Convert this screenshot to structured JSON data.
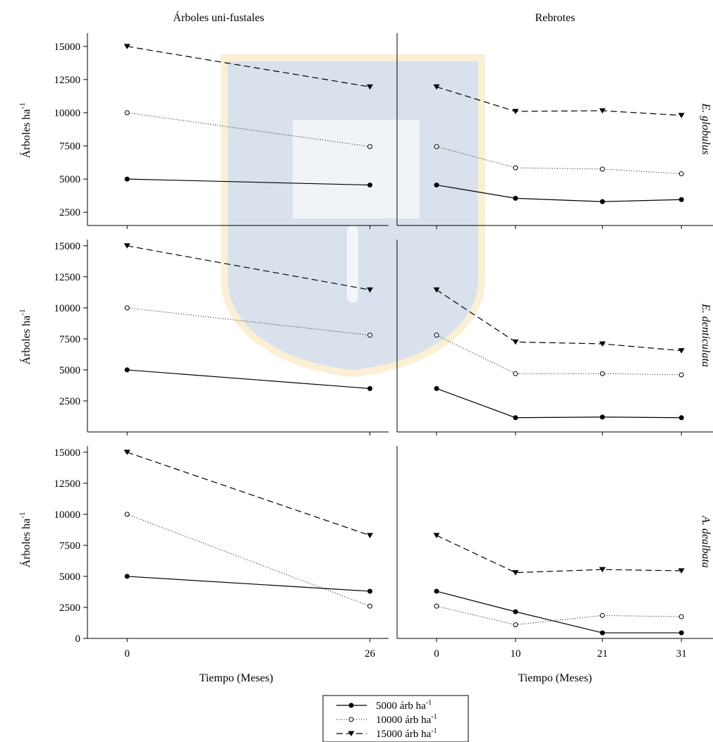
{
  "figure": {
    "col_titles": [
      "Árboles uni-fustales",
      "Rebrotes"
    ],
    "row_labels": [
      "E. globulus",
      "E. denticulata",
      "A. dealbata"
    ],
    "ylabel": {
      "main": "Árboles ha",
      "sup": "-1"
    },
    "xlabel": "Tiempo (Meses)"
  },
  "legend": {
    "entries": [
      {
        "series": 0,
        "main": "5000 árb ha",
        "sup": "-1"
      },
      {
        "series": 1,
        "main": "10000 árb ha",
        "sup": "-1"
      },
      {
        "series": 2,
        "main": "15000 árb ha",
        "sup": "-1"
      }
    ]
  },
  "chart_data": [
    {
      "type": "line",
      "row": 0,
      "col": 0,
      "column_title": "Árboles uni-fustales",
      "x": [
        0,
        26
      ],
      "xticks": [
        0,
        26
      ],
      "ylim": [
        1500,
        16000
      ],
      "yticks": [
        2500,
        5000,
        7500,
        10000,
        12500,
        15000
      ],
      "ylabel": "Árboles ha-1",
      "series": [
        {
          "name": "5000 árb ha-1",
          "values": [
            5000,
            4550
          ]
        },
        {
          "name": "10000 árb ha-1",
          "values": [
            10000,
            7450
          ]
        },
        {
          "name": "15000 árb ha-1",
          "values": [
            15000,
            11950
          ]
        }
      ]
    },
    {
      "type": "line",
      "row": 0,
      "col": 1,
      "column_title": "Rebrotes",
      "row_label": "E. globulus",
      "x": [
        0,
        10,
        21,
        31
      ],
      "xticks": [
        0,
        10,
        21,
        31
      ],
      "ylim": [
        1500,
        16000
      ],
      "yticks": [],
      "series": [
        {
          "name": "5000 árb ha-1",
          "values": [
            4550,
            3550,
            3300,
            3450
          ]
        },
        {
          "name": "10000 árb ha-1",
          "values": [
            7450,
            5850,
            5750,
            5400
          ]
        },
        {
          "name": "15000 árb ha-1",
          "values": [
            11950,
            10100,
            10150,
            9800
          ]
        }
      ]
    },
    {
      "type": "line",
      "row": 1,
      "col": 0,
      "x": [
        0,
        26
      ],
      "xticks": [
        0,
        26
      ],
      "ylim": [
        0,
        15500
      ],
      "yticks": [
        2500,
        5000,
        7500,
        10000,
        12500,
        15000
      ],
      "ylabel": "Árboles ha-1",
      "series": [
        {
          "name": "5000 árb ha-1",
          "values": [
            5000,
            3500
          ]
        },
        {
          "name": "10000 árb ha-1",
          "values": [
            10000,
            7800
          ]
        },
        {
          "name": "15000 árb ha-1",
          "values": [
            15000,
            11450
          ]
        }
      ]
    },
    {
      "type": "line",
      "row": 1,
      "col": 1,
      "row_label": "E. denticulata",
      "x": [
        0,
        10,
        21,
        31
      ],
      "xticks": [
        0,
        10,
        21,
        31
      ],
      "ylim": [
        0,
        15500
      ],
      "yticks": [],
      "series": [
        {
          "name": "5000 árb ha-1",
          "values": [
            3500,
            1150,
            1200,
            1150
          ]
        },
        {
          "name": "10000 árb ha-1",
          "values": [
            7800,
            4700,
            4700,
            4600
          ]
        },
        {
          "name": "15000 árb ha-1",
          "values": [
            11450,
            7250,
            7100,
            6550
          ]
        }
      ]
    },
    {
      "type": "line",
      "row": 2,
      "col": 0,
      "x": [
        0,
        26
      ],
      "xticks": [
        0,
        26
      ],
      "ylim": [
        0,
        15500
      ],
      "yticks": [
        0,
        2500,
        5000,
        7500,
        10000,
        12500,
        15000
      ],
      "ylabel": "Árboles ha-1",
      "xlabel": "Tiempo (Meses)",
      "series": [
        {
          "name": "5000 árb ha-1",
          "values": [
            5000,
            3800
          ]
        },
        {
          "name": "10000 árb ha-1",
          "values": [
            10000,
            2600
          ]
        },
        {
          "name": "15000 árb ha-1",
          "values": [
            15000,
            8300
          ]
        }
      ]
    },
    {
      "type": "line",
      "row": 2,
      "col": 1,
      "row_label": "A. dealbata",
      "x": [
        0,
        10,
        21,
        31
      ],
      "xticks": [
        0,
        10,
        21,
        31
      ],
      "ylim": [
        0,
        15500
      ],
      "yticks": [],
      "xlabel": "Tiempo (Meses)",
      "series": [
        {
          "name": "5000 árb ha-1",
          "values": [
            3800,
            2150,
            450,
            450
          ]
        },
        {
          "name": "10000 árb ha-1",
          "values": [
            2600,
            1100,
            1850,
            1750
          ]
        },
        {
          "name": "15000 árb ha-1",
          "values": [
            8300,
            5300,
            5550,
            5450
          ]
        }
      ]
    }
  ]
}
